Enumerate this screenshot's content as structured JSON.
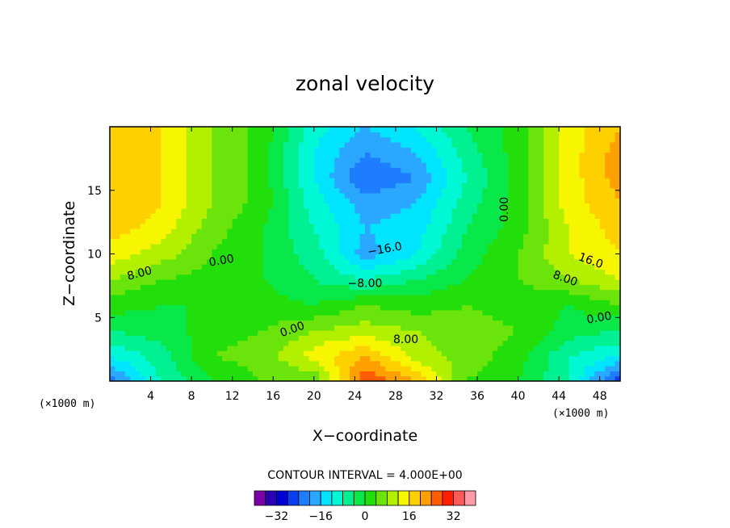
{
  "chart_data": {
    "type": "heatmap",
    "title": "zonal velocity",
    "xlabel": "X−coordinate",
    "ylabel": "Z−coordinate",
    "x_unit_label": "(×1000 m)",
    "xlim": [
      0,
      50
    ],
    "ylim": [
      0,
      20
    ],
    "x_ticks": [
      4,
      8,
      12,
      16,
      20,
      24,
      28,
      32,
      36,
      40,
      44,
      48
    ],
    "y_ticks": [
      5,
      10,
      15
    ],
    "contour_interval_text": "CONTOUR INTERVAL = 4.000E+00",
    "contour_interval": 4,
    "colorbar": {
      "levels": [
        -36,
        -32,
        -28,
        -24,
        -20,
        -16,
        -12,
        -8,
        -4,
        0,
        4,
        8,
        12,
        16,
        20,
        24,
        28,
        32,
        36
      ],
      "colors": [
        "#7b00a8",
        "#2a00b4",
        "#0000d8",
        "#0a3ef0",
        "#1e7cff",
        "#2aa8ff",
        "#00e4ff",
        "#00f8d4",
        "#00f092",
        "#08e848",
        "#22de0a",
        "#6ae40a",
        "#b2f000",
        "#f6f600",
        "#ffd000",
        "#ffa000",
        "#ff5c00",
        "#ff1e00",
        "#ff5a5a",
        "#ff9aa8"
      ],
      "tick_labels": [
        "−32",
        "−16",
        "0",
        "16",
        "32"
      ],
      "tick_values": [
        -32,
        -16,
        0,
        16,
        32
      ]
    },
    "grid": {
      "x": [
        0,
        5,
        10,
        15,
        20,
        25,
        30,
        35,
        40,
        45,
        50
      ],
      "y": [
        0,
        2,
        4,
        6,
        8,
        10,
        12,
        14,
        16,
        18,
        20
      ],
      "z": [
        [
          -22,
          -8,
          0,
          4,
          4,
          28,
          20,
          4,
          0,
          -8,
          -28
        ],
        [
          -12,
          -6,
          4,
          6,
          14,
          20,
          10,
          6,
          2,
          -8,
          -12
        ],
        [
          -4,
          -2,
          2,
          4,
          8,
          10,
          8,
          6,
          4,
          -2,
          -4
        ],
        [
          2,
          0,
          0,
          2,
          0,
          4,
          2,
          4,
          2,
          0,
          4
        ],
        [
          8,
          4,
          2,
          0,
          -4,
          -8,
          -4,
          0,
          4,
          8,
          12
        ],
        [
          14,
          10,
          4,
          0,
          -6,
          -18,
          -12,
          -2,
          4,
          12,
          16
        ],
        [
          18,
          14,
          6,
          0,
          -8,
          -16,
          -14,
          -4,
          2,
          12,
          18
        ],
        [
          20,
          16,
          8,
          2,
          -10,
          -18,
          -16,
          -6,
          2,
          14,
          20
        ],
        [
          20,
          16,
          8,
          2,
          -12,
          -24,
          -20,
          -8,
          2,
          14,
          22
        ],
        [
          20,
          16,
          8,
          2,
          -12,
          -20,
          -16,
          -6,
          2,
          14,
          22
        ],
        [
          18,
          16,
          8,
          2,
          -10,
          -16,
          -12,
          -4,
          2,
          14,
          20
        ]
      ]
    },
    "contour_labels": [
      {
        "text": "8.00",
        "x": 3,
        "y": 8.2,
        "angle": -15
      },
      {
        "text": "0.00",
        "x": 11,
        "y": 9.2,
        "angle": -10
      },
      {
        "text": "0.00",
        "x": 18,
        "y": 3.8,
        "angle": -20
      },
      {
        "text": "−16.0",
        "x": 27,
        "y": 10.1,
        "angle": -10
      },
      {
        "text": "−8.00",
        "x": 25,
        "y": 7.4,
        "angle": 0
      },
      {
        "text": "8.00",
        "x": 29,
        "y": 3.0,
        "angle": 0
      },
      {
        "text": "0.00",
        "x": 39,
        "y": 13.5,
        "angle": -90
      },
      {
        "text": "16.0",
        "x": 47,
        "y": 9.2,
        "angle": 20
      },
      {
        "text": "8.00",
        "x": 44.5,
        "y": 7.8,
        "angle": 20
      },
      {
        "text": "0.00",
        "x": 48,
        "y": 4.7,
        "angle": -10
      }
    ]
  }
}
